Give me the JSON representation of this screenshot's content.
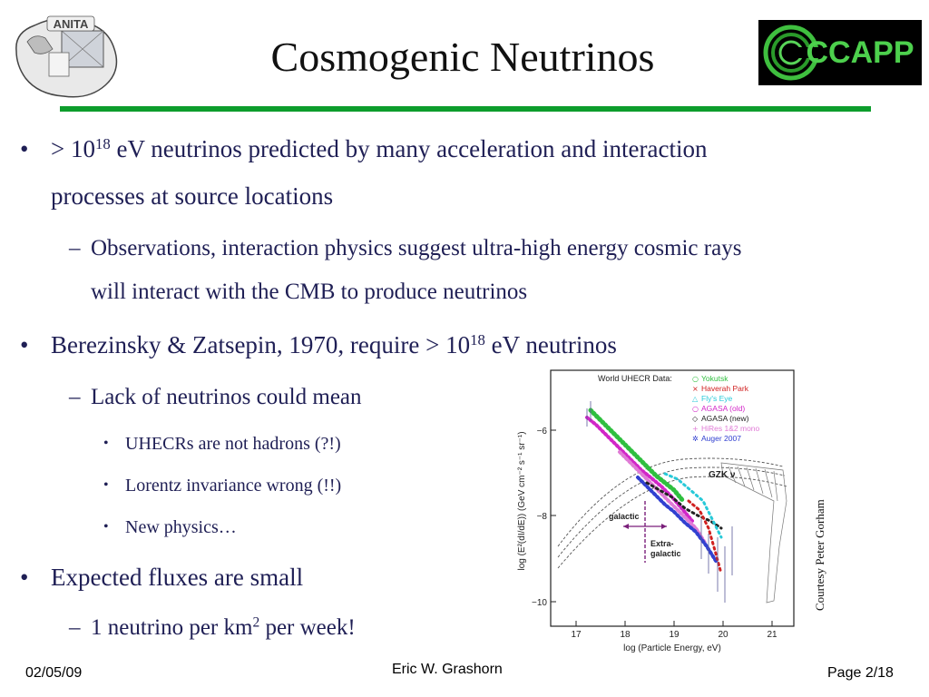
{
  "header": {
    "left_logo_text": "ANITA",
    "right_logo_text": "CCAPP",
    "title": "Cosmogenic Neutrinos",
    "accent": "#0d9d2c"
  },
  "bullets": {
    "b1_pre": "> 10",
    "b1_sup": "18",
    "b1_post": " eV neutrinos predicted by many acceleration and interaction",
    "b1_line2": "processes at source locations",
    "s1_line1": "Observations, interaction physics suggest ultra-high energy cosmic rays",
    "s1_line2": "will interact with the CMB to produce neutrinos",
    "b2_pre": "Berezinsky & Zatsepin, 1970, require > 10",
    "b2_sup": "18",
    "b2_post": " eV neutrinos",
    "s2": "Lack of neutrinos could mean",
    "t1": "UHECRs are not hadrons (?!)",
    "t2": "Lorentz invariance wrong (!!)",
    "t3": "New physics…",
    "b3": "Expected fluxes are small",
    "s3_pre": "1 neutrino per km",
    "s3_sup": "2",
    "s3_post": " per week!",
    "marker_dot": "•",
    "marker_dash": "–"
  },
  "plot": {
    "legend_title": "World UHECR Data:",
    "legend": [
      {
        "label": "Yokutsk",
        "color": "#2fbf3f",
        "symbol": "○"
      },
      {
        "label": "Haverah Park",
        "color": "#d02020",
        "symbol": "×"
      },
      {
        "label": "Fly's Eye",
        "color": "#27c9d8",
        "symbol": "△"
      },
      {
        "label": "AGASA (old)",
        "color": "#d226c8",
        "symbol": "○"
      },
      {
        "label": "AGASA (new)",
        "color": "#222222",
        "symbol": "◇"
      },
      {
        "label": "HiRes 1&2 mono",
        "color": "#e07bd6",
        "symbol": "+"
      },
      {
        "label": "Auger 2007",
        "color": "#3140d0",
        "symbol": "✲"
      }
    ],
    "ylabel": "log (E²(dI/dE)) (GeV cm⁻² s⁻¹ sr⁻¹)",
    "xlabel": "log (Particle Energy, eV)",
    "xticks": [
      "17",
      "18",
      "19",
      "20",
      "21"
    ],
    "yticks": [
      "−6",
      "−8",
      "−10"
    ],
    "gzk_label": "GZK ν",
    "galactic_label": "galactic",
    "extra_label_1": "Extra-",
    "extra_label_2": "galactic",
    "credit": "Courtesy Peter Gorham"
  },
  "footer": {
    "date": "02/05/09",
    "author": "Eric W. Grashorn",
    "page": "Page 2/18"
  }
}
